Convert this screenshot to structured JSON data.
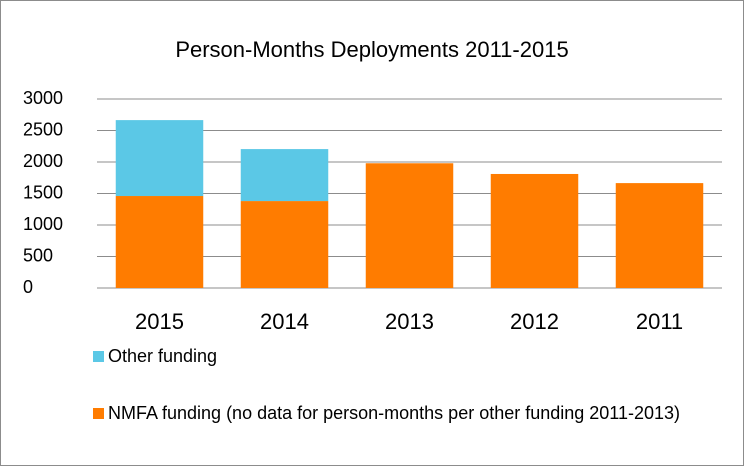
{
  "chart_data": {
    "type": "bar",
    "stacked": true,
    "title": "Person-Months Deployments 2011-2015",
    "categories": [
      "2015",
      "2014",
      "2013",
      "2012",
      "2011"
    ],
    "series": [
      {
        "name": "NMFA funding (no data for person-months per other funding 2011-2013)",
        "color": "#ff7c00",
        "values": [
          1460,
          1380,
          1980,
          1810,
          1665
        ]
      },
      {
        "name": "Other funding",
        "color": "#5bc8e6",
        "values": [
          1205,
          825,
          null,
          null,
          null
        ]
      }
    ],
    "ylim": [
      0,
      3000
    ],
    "yticks": [
      0,
      500,
      1000,
      1500,
      2000,
      2500,
      3000
    ],
    "grid": true,
    "legend": "bottom"
  }
}
